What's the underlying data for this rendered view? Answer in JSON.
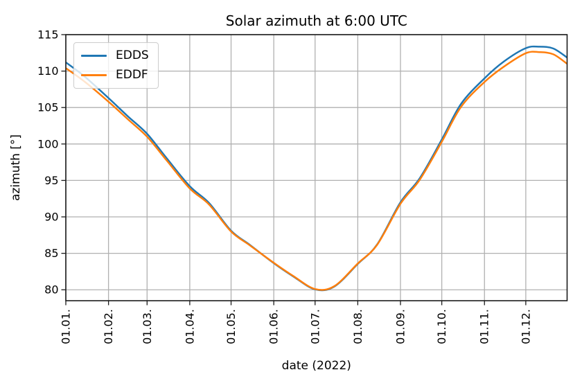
{
  "figure_background": "#ffffff",
  "colors": {
    "edds_line": "#1f77b4",
    "eddf_line": "#ff7f0e",
    "grid": "#b0b0b0",
    "spine": "#1a1a1a",
    "text": "#000000",
    "legend_border": "#cccccc"
  },
  "chart_data": {
    "type": "line",
    "title": "Solar azimuth at 6:00 UTC",
    "xlabel": "date (2022)",
    "ylabel": "azimuth [°]",
    "grid": true,
    "legend_position": "upper left",
    "x_unit": "day_of_year_2022",
    "xlim_days": [
      0,
      364
    ],
    "ylim": [
      78.5,
      115
    ],
    "x_tick_labels": [
      "01.01.",
      "01.02.",
      "01.03.",
      "01.04.",
      "01.05.",
      "01.06.",
      "01.07.",
      "01.08.",
      "01.09.",
      "01.10.",
      "01.11.",
      "01.12."
    ],
    "x_tick_days": [
      0,
      31,
      59,
      90,
      120,
      151,
      181,
      212,
      243,
      273,
      304,
      334
    ],
    "y_tick_labels": [
      "80",
      "85",
      "90",
      "95",
      "100",
      "105",
      "110",
      "115"
    ],
    "y_tick_values": [
      80,
      85,
      90,
      95,
      100,
      105,
      110,
      115
    ],
    "series": [
      {
        "name": "EDDS",
        "color": "#1f77b4",
        "x_days": [
          0,
          14,
          31,
          45,
          59,
          73,
          90,
          104,
          120,
          134,
          151,
          165,
          181,
          195,
          212,
          226,
          243,
          257,
          273,
          287,
          304,
          318,
          334,
          344,
          354,
          364
        ],
        "y": [
          111.2,
          109.2,
          106.3,
          103.8,
          101.4,
          98.1,
          94.2,
          91.9,
          88.1,
          86.1,
          83.65,
          81.85,
          80.05,
          80.45,
          83.55,
          86.2,
          92.0,
          95.3,
          100.6,
          105.5,
          109.0,
          111.3,
          113.15,
          113.35,
          113.1,
          111.85
        ]
      },
      {
        "name": "EDDF",
        "color": "#ff7f0e",
        "x_days": [
          0,
          14,
          31,
          45,
          59,
          73,
          90,
          104,
          120,
          134,
          151,
          165,
          181,
          195,
          212,
          226,
          243,
          257,
          273,
          287,
          304,
          318,
          334,
          344,
          354,
          364
        ],
        "y": [
          110.4,
          108.5,
          105.8,
          103.4,
          101.0,
          97.8,
          93.9,
          91.7,
          88.0,
          86.05,
          83.7,
          81.9,
          80.1,
          80.5,
          83.6,
          86.15,
          91.8,
          95.1,
          100.3,
          105.1,
          108.5,
          110.6,
          112.45,
          112.6,
          112.3,
          111.0
        ]
      }
    ]
  }
}
